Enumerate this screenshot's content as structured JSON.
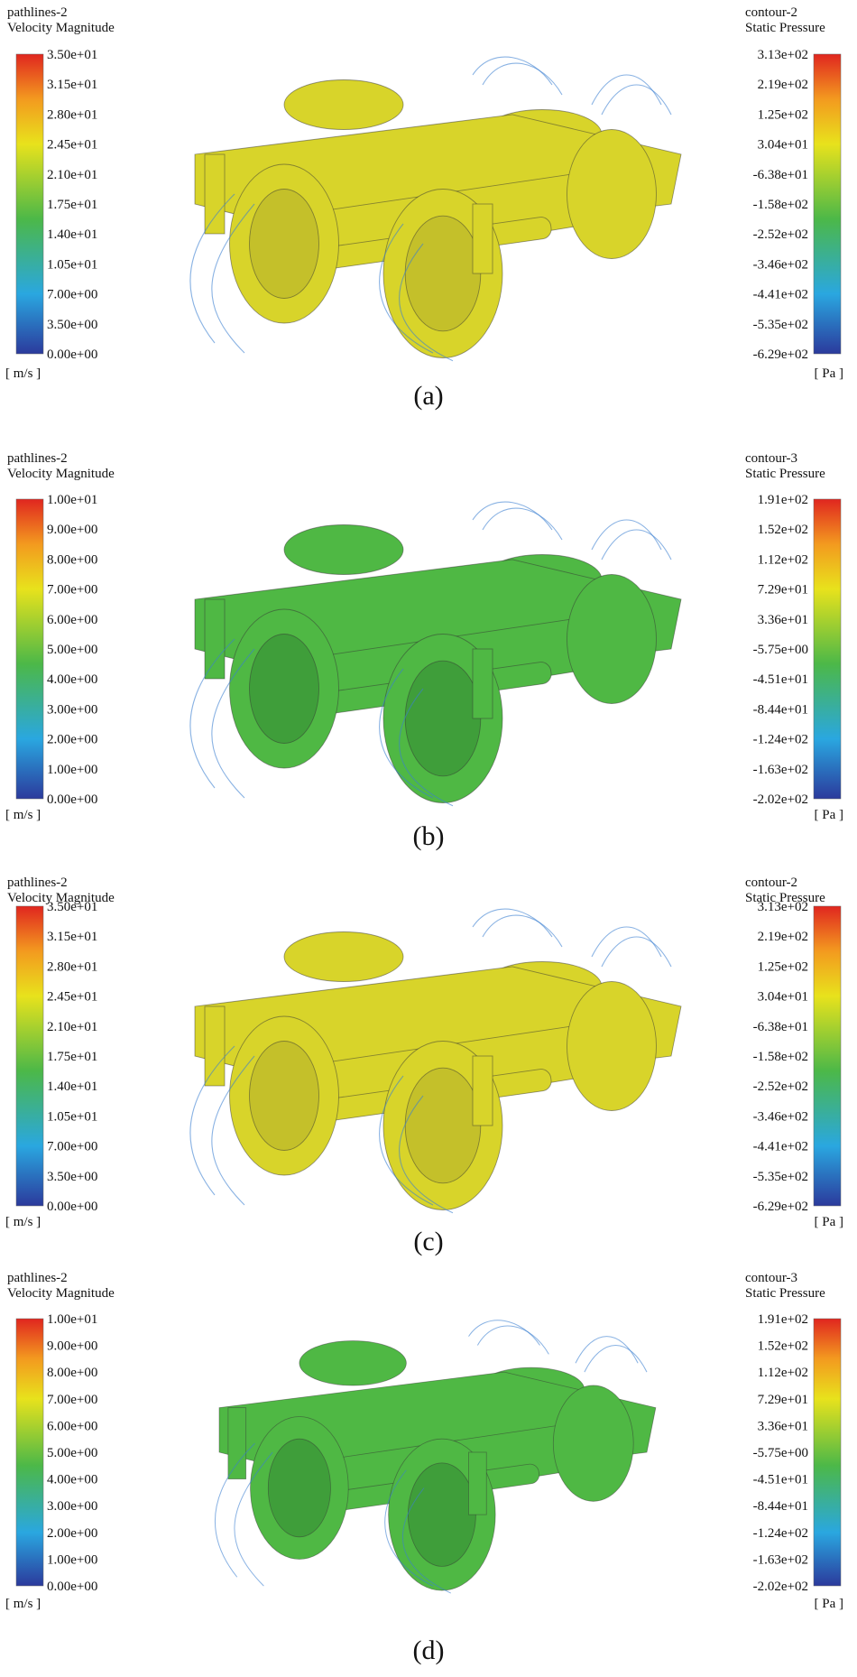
{
  "panels": [
    {
      "caption": "(a)",
      "left": {
        "title": [
          "pathlines-2",
          "Velocity Magnitude"
        ],
        "ticks": [
          "3.50e+01",
          "3.15e+01",
          "2.80e+01",
          "2.45e+01",
          "2.10e+01",
          "1.75e+01",
          "1.40e+01",
          "1.05e+01",
          "7.00e+00",
          "3.50e+00",
          "0.00e+00"
        ],
        "unit": "[ m/s ]"
      },
      "right": {
        "title": [
          "contour-2",
          "Static Pressure"
        ],
        "ticks": [
          "3.13e+02",
          "2.19e+02",
          "1.25e+02",
          "3.04e+01",
          "-6.38e+01",
          "-1.58e+02",
          "-2.52e+02",
          "-3.46e+02",
          "-4.41e+02",
          "-5.35e+02",
          "-6.29e+02"
        ],
        "unit": "[ Pa ]"
      }
    },
    {
      "caption": "(b)",
      "left": {
        "title": [
          "pathlines-2",
          "Velocity Magnitude"
        ],
        "ticks": [
          "1.00e+01",
          "9.00e+00",
          "8.00e+00",
          "7.00e+00",
          "6.00e+00",
          "5.00e+00",
          "4.00e+00",
          "3.00e+00",
          "2.00e+00",
          "1.00e+00",
          "0.00e+00"
        ],
        "unit": "[ m/s ]"
      },
      "right": {
        "title": [
          "contour-3",
          "Static Pressure"
        ],
        "ticks": [
          "1.91e+02",
          "1.52e+02",
          "1.12e+02",
          "7.29e+01",
          "3.36e+01",
          "-5.75e+00",
          "-4.51e+01",
          "-8.44e+01",
          "-1.24e+02",
          "-1.63e+02",
          "-2.02e+02"
        ],
        "unit": "[ Pa ]"
      }
    },
    {
      "caption": "(c)",
      "left": {
        "title": [
          "pathlines-2",
          "Velocity Magnitude"
        ],
        "ticks": [
          "3.50e+01",
          "3.15e+01",
          "2.80e+01",
          "2.45e+01",
          "2.10e+01",
          "1.75e+01",
          "1.40e+01",
          "1.05e+01",
          "7.00e+00",
          "3.50e+00",
          "0.00e+00"
        ],
        "unit": "[ m/s ]"
      },
      "right": {
        "title": [
          "contour-2",
          "Static Pressure"
        ],
        "ticks": [
          "3.13e+02",
          "2.19e+02",
          "1.25e+02",
          "3.04e+01",
          "-6.38e+01",
          "-1.58e+02",
          "-2.52e+02",
          "-3.46e+02",
          "-4.41e+02",
          "-5.35e+02",
          "-6.29e+02"
        ],
        "unit": "[ Pa ]"
      }
    },
    {
      "caption": "(d)",
      "left": {
        "title": [
          "pathlines-2",
          "Velocity Magnitude"
        ],
        "ticks": [
          "1.00e+01",
          "9.00e+00",
          "8.00e+00",
          "7.00e+00",
          "6.00e+00",
          "5.00e+00",
          "4.00e+00",
          "3.00e+00",
          "2.00e+00",
          "1.00e+00",
          "0.00e+00"
        ],
        "unit": "[ m/s ]"
      },
      "right": {
        "title": [
          "contour-3",
          "Static Pressure"
        ],
        "ticks": [
          "1.91e+02",
          "1.52e+02",
          "1.12e+02",
          "7.29e+01",
          "3.36e+01",
          "-5.75e+00",
          "-4.51e+01",
          "-8.44e+01",
          "-1.24e+02",
          "-1.63e+02",
          "-2.02e+02"
        ],
        "unit": "[ Pa ]"
      }
    }
  ]
}
